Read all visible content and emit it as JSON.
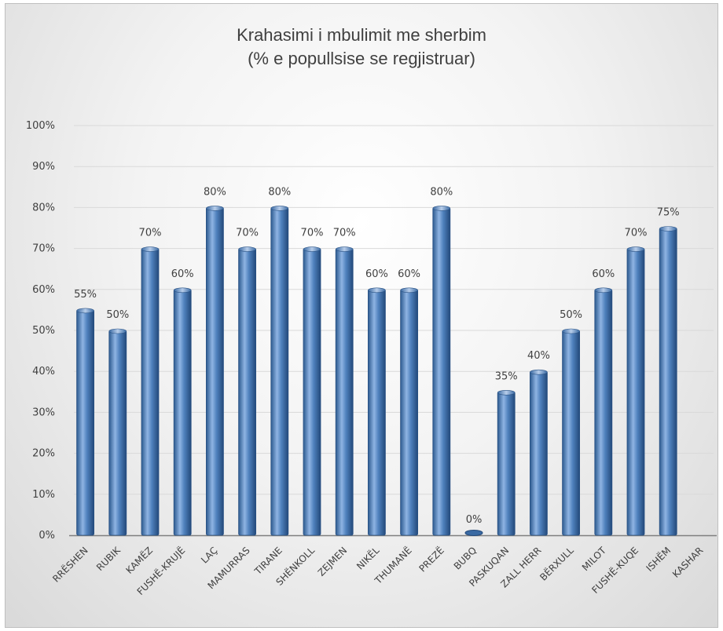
{
  "chart_data": {
    "type": "bar",
    "title": "Krahasimi i mbulimit me sherbim",
    "subtitle": "(% e popullsise se regjistruar)",
    "xlabel": "",
    "ylabel": "",
    "ylim": [
      0,
      100
    ],
    "y_ticks": [
      "0%",
      "10%",
      "20%",
      "30%",
      "40%",
      "50%",
      "60%",
      "70%",
      "80%",
      "90%",
      "100%"
    ],
    "grid": true,
    "categories": [
      "RRËSHEN",
      "RUBIK",
      "KAMËZ",
      "FUSHË-KRUJË",
      "LAÇ",
      "MAMURRAS",
      "TIRANE",
      "SHËNKOLL",
      "ZEJMEN",
      "NIKËL",
      "THUMANË",
      "PREZË",
      "BUBQ",
      "PASKUQAN",
      "ZALL HERR",
      "BËRXULL",
      "MILOT",
      "FUSHË-KUQE",
      "ISHËM",
      "KASHAR"
    ],
    "values": [
      55,
      50,
      70,
      60,
      80,
      70,
      80,
      70,
      70,
      60,
      60,
      80,
      0,
      35,
      40,
      50,
      60,
      70,
      75,
      null
    ],
    "data_labels": [
      "55%",
      "50%",
      "70%",
      "60%",
      "80%",
      "70%",
      "80%",
      "70%",
      "70%",
      "60%",
      "60%",
      "80%",
      "0%",
      "35%",
      "40%",
      "50%",
      "60%",
      "70%",
      "75%",
      ""
    ],
    "colors": {
      "bar": "#4f81bd",
      "bar_dark": "#2c5a8f",
      "bar_light": "#8fb4e3",
      "grid": "#d9d9d9",
      "text": "#404040"
    }
  }
}
